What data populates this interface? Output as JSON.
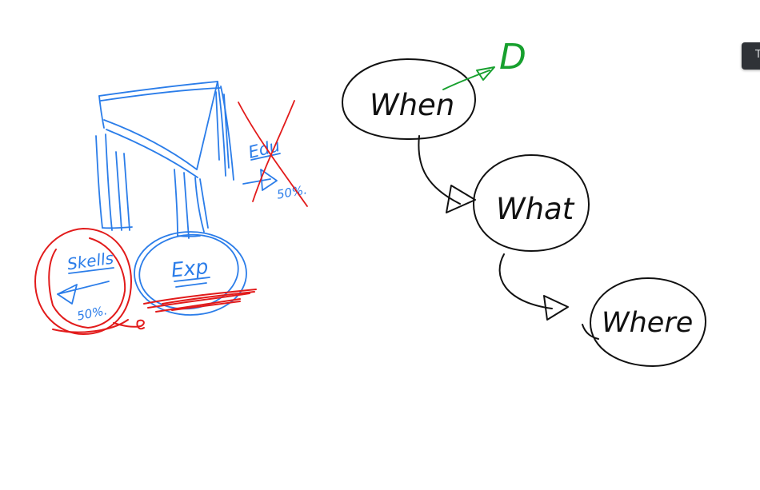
{
  "ink_colors": {
    "blue": "#2b7de9",
    "red": "#e21b1b",
    "black": "#111111",
    "green": "#17a02e"
  },
  "left_sketch": {
    "skills_label": "Skells",
    "skills_percent": "50%.",
    "exp_label": "Exp",
    "edu_label": "Edu",
    "edu_percent": "50%."
  },
  "flow": {
    "node1_label": "When",
    "node2_label": "What",
    "node3_label": "Where",
    "branch_label": "D"
  },
  "side_tab": {
    "glyph": "T"
  }
}
